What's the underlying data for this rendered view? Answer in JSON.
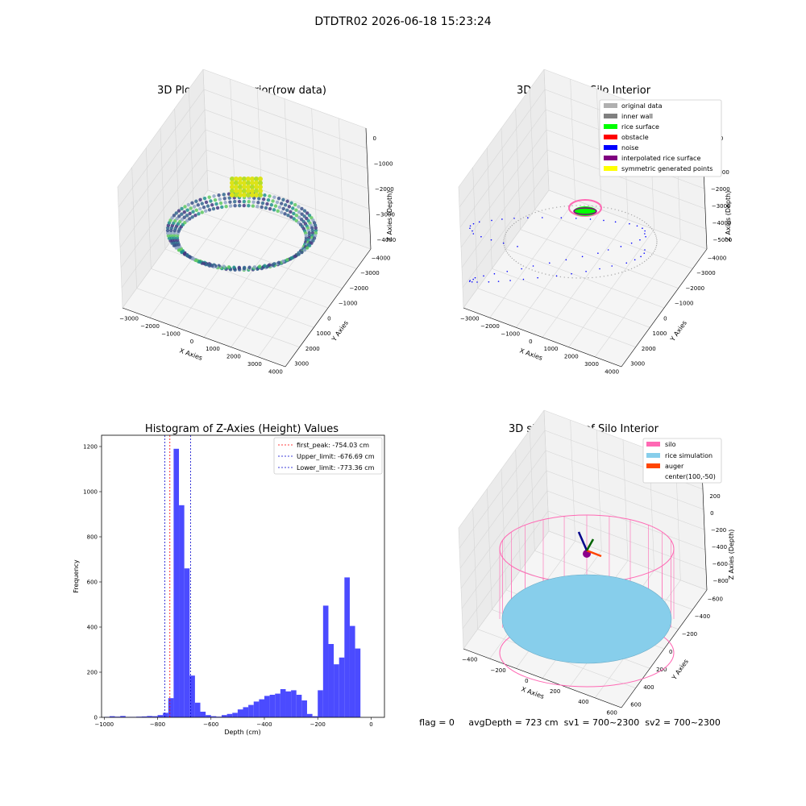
{
  "suptitle": "DTDTR02 2026-06-18 15:23:24",
  "panels": {
    "raw": {
      "title": "3D Plot of Silo Interior(row data)",
      "xlabel": "X Axies",
      "ylabel": "Y Axies",
      "zlabel": "Z Axies (Depth)",
      "xticks": [
        "−3000",
        "−2000",
        "−1000",
        "0",
        "1000",
        "2000",
        "3000",
        "4000"
      ],
      "yticks": [
        "3000",
        "2000",
        "1000",
        "0",
        "−1000",
        "−2000",
        "−3000",
        "−4000"
      ],
      "zticks": [
        "0",
        "−1000",
        "−2000",
        "−3000",
        "−4000"
      ]
    },
    "classify": {
      "title": "3D classify of Silo Interior",
      "xlabel": "X Axies",
      "ylabel": "Y Axies",
      "zlabel": "Z Axies (Depth)",
      "xticks": [
        "−3000",
        "−2000",
        "−1000",
        "0",
        "1000",
        "2000",
        "3000",
        "4000"
      ],
      "yticks": [
        "3000",
        "2000",
        "1000",
        "0",
        "−1000",
        "−2000",
        "−3000",
        "−4000"
      ],
      "zticks": [
        "1000",
        "0",
        "−1000",
        "−2000",
        "−3000",
        "−4000",
        "−5000"
      ],
      "legend": [
        {
          "label": "original data",
          "color": "#b0b0b0"
        },
        {
          "label": "inner wall",
          "color": "#808080"
        },
        {
          "label": "rice surface",
          "color": "#00ff00"
        },
        {
          "label": "obstacle",
          "color": "#ff0000"
        },
        {
          "label": "noise",
          "color": "#0000ff"
        },
        {
          "label": "interpolated rice surface",
          "color": "#800080"
        },
        {
          "label": "symmetric generated points",
          "color": "#ffff00"
        }
      ]
    },
    "histogram": {
      "title": "Histogram of Z-Axies (Height) Values",
      "xlabel": "Depth (cm)",
      "ylabel": "Frequency",
      "legend": [
        {
          "label": "first_peak: -754.03 cm",
          "color": "#ff0000"
        },
        {
          "label": "Upper_limit: -676.69 cm",
          "color": "#0000cc"
        },
        {
          "label": "Lower_limit: -773.36 cm",
          "color": "#0000cc"
        }
      ]
    },
    "simulation": {
      "title": "3D simulation of Silo Interior",
      "xlabel": "X Axies",
      "ylabel": "Y Axies",
      "zlabel": "Z Axies (Depth)",
      "xticks": [
        "−400",
        "−200",
        "0",
        "200",
        "400",
        "600"
      ],
      "yticks": [
        "600",
        "400",
        "200",
        "0",
        "−200",
        "−400",
        "−600"
      ],
      "zticks": [
        "400",
        "200",
        "0",
        "−200",
        "−400",
        "−600",
        "−800"
      ],
      "legend": [
        {
          "label": "silo",
          "color": "#ff69b4"
        },
        {
          "label": "rice simulation",
          "color": "#87ceeb"
        },
        {
          "label": "auger",
          "color": "#ff4500"
        },
        {
          "label": "center(100,-50)",
          "color": ""
        }
      ]
    }
  },
  "footer": "flag = 0     avgDepth = 723 cm  sv1 = 700~2300  sv2 = 700~2300",
  "chart_data": {
    "type": "bar",
    "title": "Histogram of Z-Axies (Height) Values",
    "xlabel": "Depth (cm)",
    "ylabel": "Frequency",
    "xlim": [
      -1010,
      50
    ],
    "ylim": [
      0,
      1250
    ],
    "xticks": [
      -1000,
      -800,
      -600,
      -400,
      -200,
      0
    ],
    "yticks": [
      0,
      200,
      400,
      600,
      800,
      1000,
      1200
    ],
    "bin_edges": [
      -1000,
      -980,
      -960,
      -940,
      -920,
      -900,
      -880,
      -860,
      -840,
      -820,
      -800,
      -780,
      -760,
      -740,
      -720,
      -700,
      -680,
      -660,
      -640,
      -620,
      -600,
      -580,
      -560,
      -540,
      -520,
      -500,
      -480,
      -460,
      -440,
      -420,
      -400,
      -380,
      -360,
      -340,
      -320,
      -300,
      -280,
      -260,
      -240,
      -220,
      -200,
      -180,
      -160,
      -140,
      -120,
      -100,
      -80,
      -60,
      -40,
      -20,
      0
    ],
    "values": [
      2,
      5,
      3,
      6,
      2,
      2,
      3,
      4,
      6,
      5,
      10,
      20,
      85,
      1190,
      940,
      660,
      185,
      65,
      25,
      10,
      5,
      3,
      10,
      15,
      20,
      35,
      45,
      55,
      70,
      80,
      95,
      100,
      105,
      125,
      115,
      120,
      100,
      75,
      15,
      5,
      120,
      495,
      325,
      235,
      265,
      620,
      405,
      305,
      0,
      0
    ],
    "vlines": [
      {
        "label": "first_peak: -754.03 cm",
        "x": -754.03,
        "color": "#ff0000"
      },
      {
        "label": "Upper_limit: -676.69 cm",
        "x": -676.69,
        "color": "#0000cc"
      },
      {
        "label": "Lower_limit: -773.36 cm",
        "x": -773.36,
        "color": "#0000cc"
      }
    ],
    "bar_color": "#4b4bff"
  }
}
